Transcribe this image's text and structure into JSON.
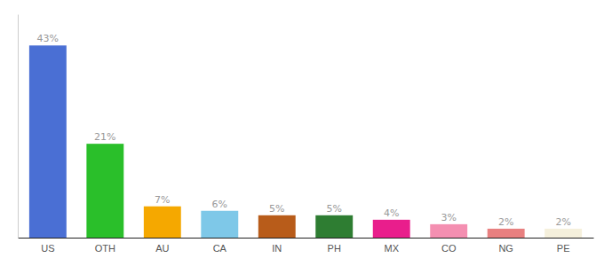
{
  "chart_data": {
    "type": "bar",
    "categories": [
      "US",
      "OTH",
      "AU",
      "CA",
      "IN",
      "PH",
      "MX",
      "CO",
      "NG",
      "PE"
    ],
    "values": [
      43,
      21,
      7,
      6,
      5,
      5,
      4,
      3,
      2,
      2
    ],
    "value_labels": [
      "43%",
      "21%",
      "7%",
      "6%",
      "5%",
      "5%",
      "4%",
      "3%",
      "2%",
      "2%"
    ],
    "colors": [
      "#4a6fd4",
      "#2abf2a",
      "#f5a800",
      "#7ec8e8",
      "#b85c1a",
      "#2e7d32",
      "#e91e8c",
      "#f48fb1",
      "#e88080",
      "#f5f0dc"
    ],
    "ylim": [
      0,
      50
    ],
    "data_labels": true,
    "tick_labels": "x",
    "grid": false
  }
}
